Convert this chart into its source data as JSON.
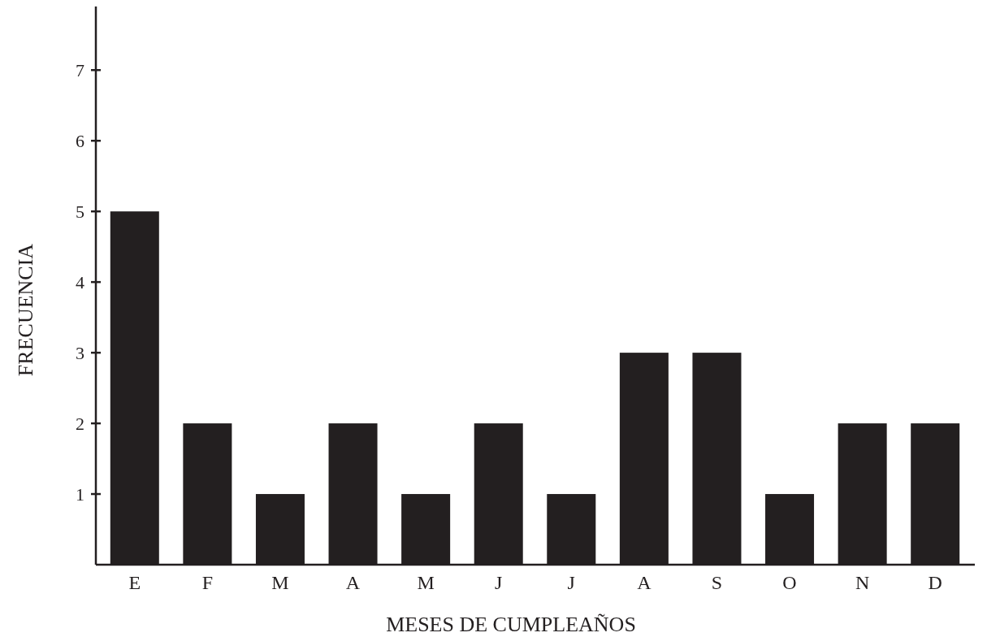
{
  "chart_data": {
    "type": "bar",
    "xlabel": "MESES DE CUMPLEAÑOS",
    "ylabel": "FRECUENCIA",
    "categories": [
      "E",
      "F",
      "M",
      "A",
      "M",
      "J",
      "J",
      "A",
      "S",
      "O",
      "N",
      "D"
    ],
    "values": [
      5,
      2,
      1,
      2,
      1,
      2,
      1,
      3,
      3,
      1,
      2,
      2
    ],
    "color": "#231f20",
    "ylim": [
      0,
      7.9
    ],
    "yticks": [
      1,
      2,
      3,
      4,
      5,
      6,
      7
    ],
    "grid": false
  }
}
